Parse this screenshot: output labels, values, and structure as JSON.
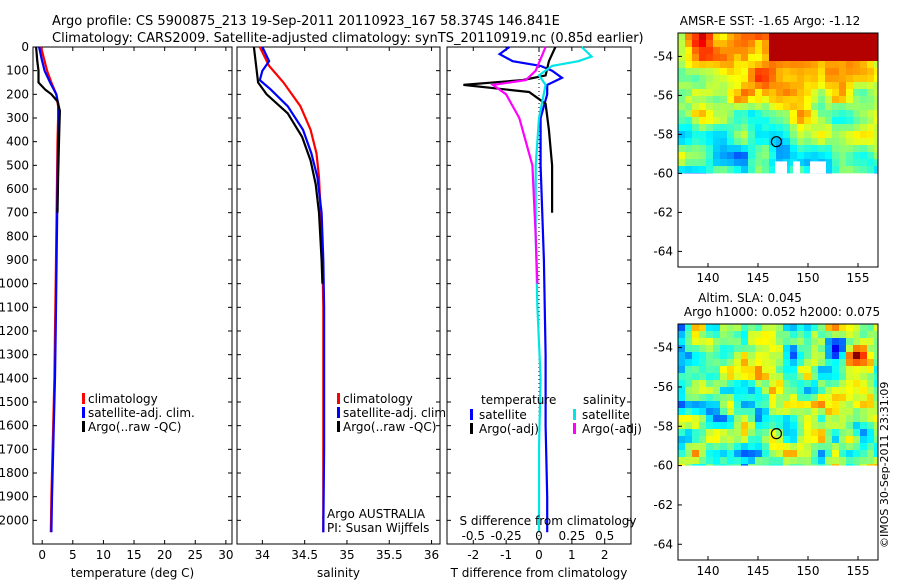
{
  "header": {
    "line1": "Argo profile: CS 5900875_213 19-Sep-2011 20110923_167 58.374S 146.841E",
    "line2": "Climatology: CARS2009. Satellite-adjusted climatology: synTS_20110919.nc (0.85d earlier)"
  },
  "watermark": "©IMOS 30-Sep-2011 23:31:09",
  "chart_data": [
    {
      "type": "line",
      "id": "temperature-panel",
      "xlabel": "temperature (deg C)",
      "ylabel": "",
      "xlim": [
        -1.5,
        31
      ],
      "ylim": [
        2100,
        0
      ],
      "xticks": [
        0,
        5,
        10,
        15,
        20,
        25,
        30
      ],
      "yticks": [
        0,
        100,
        200,
        300,
        400,
        500,
        600,
        700,
        800,
        900,
        1000,
        1100,
        1200,
        1300,
        1400,
        1500,
        1600,
        1700,
        1800,
        1900,
        2000
      ],
      "legend": [
        "climatology",
        "satellite-adj. clim.",
        "Argo(..raw -QC)"
      ],
      "legend_position": "lower-right",
      "series": [
        {
          "name": "climatology",
          "color": "#ff0000",
          "x": [
            -0.2,
            0.3,
            0.8,
            1.5,
            2.3,
            2.6,
            2.6,
            2.5,
            2.4,
            2.3,
            2.2,
            2.1,
            2.0,
            1.9,
            1.8,
            1.7,
            1.6,
            1.5,
            1.4
          ],
          "y": [
            0,
            50,
            100,
            150,
            200,
            250,
            300,
            400,
            600,
            800,
            1000,
            1200,
            1400,
            1500,
            1600,
            1700,
            1800,
            1900,
            2050
          ]
        },
        {
          "name": "satellite-adj. clim.",
          "color": "#0000ff",
          "x": [
            -0.5,
            -0.1,
            0.4,
            1.3,
            2.3,
            2.7,
            2.7,
            2.6,
            2.5,
            2.4,
            2.3,
            2.2,
            2.1,
            2.0,
            1.9,
            1.8,
            1.7,
            1.6,
            1.5
          ],
          "y": [
            0,
            50,
            100,
            150,
            200,
            250,
            300,
            400,
            600,
            800,
            1000,
            1200,
            1400,
            1500,
            1600,
            1700,
            1800,
            1900,
            2050
          ]
        },
        {
          "name": "Argo(..raw -QC)",
          "color": "#000000",
          "x": [
            -1.0,
            -0.8,
            -0.6,
            -0.6,
            0.5,
            1.5,
            2.5,
            2.9,
            2.8,
            2.7,
            2.6,
            2.5
          ],
          "y": [
            0,
            60,
            100,
            150,
            180,
            200,
            230,
            270,
            350,
            450,
            550,
            700
          ]
        }
      ]
    },
    {
      "type": "line",
      "id": "salinity-panel",
      "xlabel": "salinity",
      "ylabel": "",
      "xlim": [
        33.7,
        36.1
      ],
      "ylim": [
        2100,
        0
      ],
      "xticks": [
        34,
        34.5,
        35,
        35.5,
        36
      ],
      "legend": [
        "climatology",
        "satellite-adj. clim.",
        "Argo(..raw -QC)"
      ],
      "legend_position": "lower-right",
      "annotation": [
        "Argo AUSTRALIA",
        "PI: Susan Wijffels"
      ],
      "series": [
        {
          "name": "climatology",
          "color": "#ff0000",
          "x": [
            33.97,
            34.08,
            34.25,
            34.45,
            34.57,
            34.64,
            34.67,
            34.69,
            34.71,
            34.72,
            34.72,
            34.72,
            34.72
          ],
          "y": [
            0,
            80,
            150,
            250,
            350,
            450,
            550,
            700,
            900,
            1100,
            1400,
            1700,
            2050
          ]
        },
        {
          "name": "satellite-adj. clim.",
          "color": "#0000ff",
          "x": [
            34.0,
            34.08,
            34.0,
            33.97,
            34.1,
            34.3,
            34.48,
            34.58,
            34.65,
            34.7,
            34.72,
            34.73,
            34.73,
            34.73,
            34.72
          ],
          "y": [
            0,
            60,
            100,
            140,
            180,
            250,
            350,
            450,
            550,
            700,
            900,
            1100,
            1400,
            1700,
            2050
          ]
        },
        {
          "name": "Argo(..raw -QC)",
          "color": "#000000",
          "x": [
            33.9,
            33.95,
            34.05,
            34.3,
            34.47,
            34.57,
            34.63,
            34.67,
            34.7,
            34.71
          ],
          "y": [
            0,
            150,
            200,
            280,
            380,
            480,
            580,
            700,
            900,
            1000
          ]
        }
      ]
    },
    {
      "type": "line",
      "id": "difference-panel",
      "xlabel": "T difference from climatology",
      "xlabel_top": "S difference from climatology",
      "xlim": [
        -2.8,
        2.8
      ],
      "ylim": [
        2100,
        0
      ],
      "xticks": [
        -2,
        -1,
        0,
        1,
        2
      ],
      "xticks_top_labels": [
        "-0.5",
        "-0.25",
        "0",
        "0.25",
        "0.5"
      ],
      "legend_headers": [
        "temperature",
        "salinity"
      ],
      "legend": [
        "satellite",
        "Argo(-adj)",
        "satellite",
        "Argo(-adj)"
      ],
      "legend_position": "lower-center",
      "series": [
        {
          "name": "temperature satellite",
          "color": "#0000ff",
          "x": [
            -0.9,
            -1.2,
            -0.8,
            0.05,
            0.4,
            0.7,
            0.25,
            0.25,
            0.05,
            0.05,
            0.15,
            0.2,
            0.2,
            0.25,
            0.25
          ],
          "y": [
            0,
            30,
            60,
            80,
            100,
            130,
            160,
            200,
            300,
            500,
            900,
            1300,
            1600,
            1900,
            2050
          ]
        },
        {
          "name": "temperature Argo(-adj)",
          "color": "#000000",
          "x": [
            0.5,
            0.3,
            0.2,
            -0.5,
            -2.3,
            -0.3,
            0.2,
            0.3,
            0.4,
            0.4
          ],
          "y": [
            0,
            60,
            120,
            140,
            160,
            190,
            240,
            350,
            500,
            700
          ]
        },
        {
          "name": "salinity satellite",
          "color": "#00e5e5",
          "x": [
            1.3,
            1.6,
            1.2,
            0.4,
            0.0,
            0.2,
            0.0,
            -0.1,
            -0.1,
            -0.05,
            0.05,
            0.0,
            0.0
          ],
          "y": [
            0,
            40,
            60,
            80,
            120,
            160,
            300,
            500,
            800,
            1100,
            1400,
            1700,
            2050
          ]
        },
        {
          "name": "salinity Argo(-adj)",
          "color": "#ff00ff",
          "x": [
            0.2,
            -0.1,
            -0.4,
            -1.4,
            -1.0,
            -0.6,
            -0.2,
            -0.1,
            -0.05
          ],
          "y": [
            0,
            100,
            140,
            160,
            200,
            300,
            500,
            800,
            1000
          ]
        }
      ]
    },
    {
      "type": "heatmap",
      "id": "sst-map",
      "title": "AMSR-E SST: -1.65 Argo: -1.12",
      "xticks": [
        140,
        145,
        150,
        155
      ],
      "yticks": [
        -54,
        -56,
        -58,
        -60,
        -62,
        -64
      ],
      "xlim": [
        137,
        157
      ],
      "ylim": [
        -64.8,
        -52.8
      ],
      "marker": {
        "lon": 146.841,
        "lat": -58.374
      }
    },
    {
      "type": "heatmap",
      "id": "sla-map",
      "title": "Altim. SLA: 0.045",
      "subtitle": "Argo h1000: 0.052 h2000: 0.075",
      "xticks": [
        140,
        145,
        150,
        155
      ],
      "yticks": [
        -54,
        -56,
        -58,
        -60,
        -62,
        -64
      ],
      "xlim": [
        137,
        157
      ],
      "ylim": [
        -64.8,
        -52.8
      ],
      "marker": {
        "lon": 146.841,
        "lat": -58.374
      }
    }
  ]
}
